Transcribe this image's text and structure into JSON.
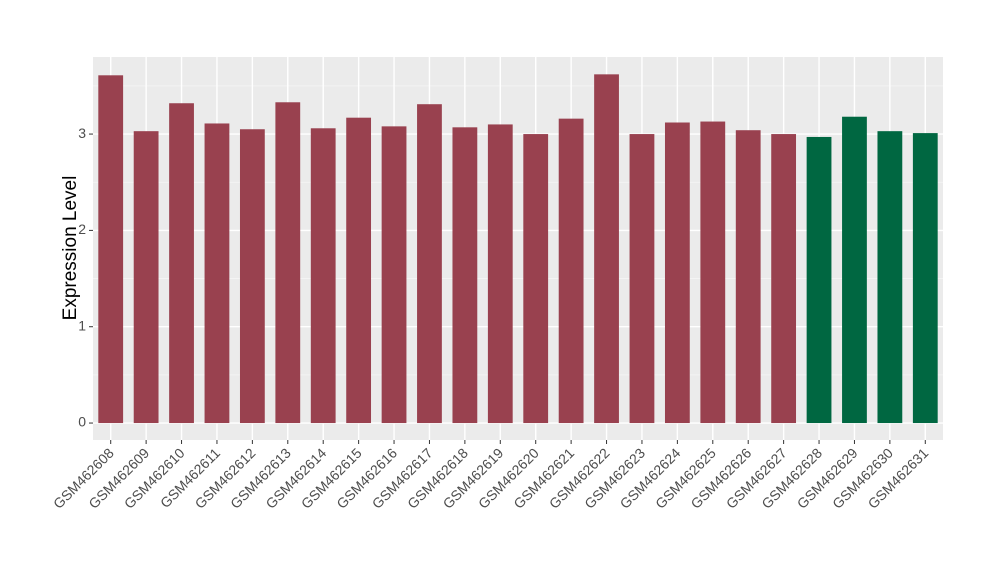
{
  "chart_data": {
    "type": "bar",
    "y_label": "Expression Level",
    "categories": [
      "GSM462608",
      "GSM462609",
      "GSM462610",
      "GSM462611",
      "GSM462612",
      "GSM462613",
      "GSM462614",
      "GSM462615",
      "GSM462616",
      "GSM462617",
      "GSM462618",
      "GSM462619",
      "GSM462620",
      "GSM462621",
      "GSM462622",
      "GSM462623",
      "GSM462624",
      "GSM462625",
      "GSM462626",
      "GSM462627",
      "GSM462628",
      "GSM462629",
      "GSM462630",
      "GSM462631"
    ],
    "values": [
      3.61,
      3.03,
      3.32,
      3.11,
      3.05,
      3.33,
      3.06,
      3.17,
      3.08,
      3.31,
      3.07,
      3.1,
      3.0,
      3.16,
      3.62,
      3.0,
      3.12,
      3.13,
      3.04,
      3.0,
      2.97,
      3.18,
      3.03,
      3.01
    ],
    "colors": [
      "#99414f",
      "#99414f",
      "#99414f",
      "#99414f",
      "#99414f",
      "#99414f",
      "#99414f",
      "#99414f",
      "#99414f",
      "#99414f",
      "#99414f",
      "#99414f",
      "#99414f",
      "#99414f",
      "#99414f",
      "#99414f",
      "#99414f",
      "#99414f",
      "#99414f",
      "#99414f",
      "#006741",
      "#006741",
      "#006741",
      "#006741"
    ],
    "ylim": [
      -0.176,
      3.8
    ],
    "yticks": [
      0,
      1,
      2,
      3
    ],
    "minor_yticks": [
      0.5,
      1.5,
      2.5,
      3.5
    ],
    "grid": true
  }
}
